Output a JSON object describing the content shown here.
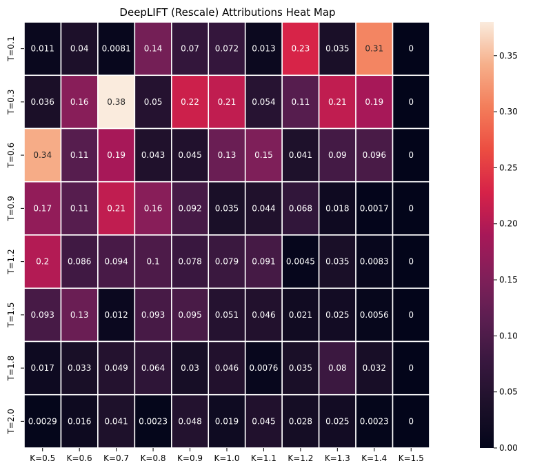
{
  "chart_data": {
    "type": "heatmap",
    "title": "DeepLIFT (Rescale) Attributions Heat Map",
    "x_labels": [
      "K=0.5",
      "K=0.6",
      "K=0.7",
      "K=0.8",
      "K=0.9",
      "K=1.0",
      "K=1.1",
      "K=1.2",
      "K=1.3",
      "K=1.4",
      "K=1.5"
    ],
    "y_labels": [
      "T=0.1",
      "T=0.3",
      "T=0.6",
      "T=0.9",
      "T=1.2",
      "T=1.5",
      "T=1.8",
      "T=2.0"
    ],
    "values": [
      [
        0.011,
        0.04,
        0.0081,
        0.14,
        0.07,
        0.072,
        0.013,
        0.23,
        0.035,
        0.31,
        0
      ],
      [
        0.036,
        0.16,
        0.38,
        0.05,
        0.22,
        0.21,
        0.054,
        0.11,
        0.21,
        0.19,
        0
      ],
      [
        0.34,
        0.11,
        0.19,
        0.043,
        0.045,
        0.13,
        0.15,
        0.041,
        0.09,
        0.096,
        0
      ],
      [
        0.17,
        0.11,
        0.21,
        0.16,
        0.092,
        0.035,
        0.044,
        0.068,
        0.018,
        0.0017,
        0
      ],
      [
        0.2,
        0.086,
        0.094,
        0.1,
        0.078,
        0.079,
        0.091,
        0.0045,
        0.035,
        0.0083,
        0
      ],
      [
        0.093,
        0.13,
        0.012,
        0.093,
        0.095,
        0.051,
        0.046,
        0.021,
        0.025,
        0.0056,
        0
      ],
      [
        0.017,
        0.033,
        0.049,
        0.064,
        0.03,
        0.046,
        0.0076,
        0.035,
        0.08,
        0.032,
        0
      ],
      [
        0.0029,
        0.016,
        0.041,
        0.0023,
        0.048,
        0.019,
        0.045,
        0.028,
        0.025,
        0.0023,
        0
      ]
    ],
    "vmin": 0,
    "vmax": 0.38,
    "colorbar_ticks": [
      0.0,
      0.05,
      0.1,
      0.15,
      0.2,
      0.25,
      0.3,
      0.35
    ],
    "colorbar_tick_labels": [
      "0.00",
      "0.05",
      "0.10",
      "0.15",
      "0.20",
      "0.25",
      "0.30",
      "0.35"
    ],
    "colormap": "rocket",
    "annotated": true
  }
}
